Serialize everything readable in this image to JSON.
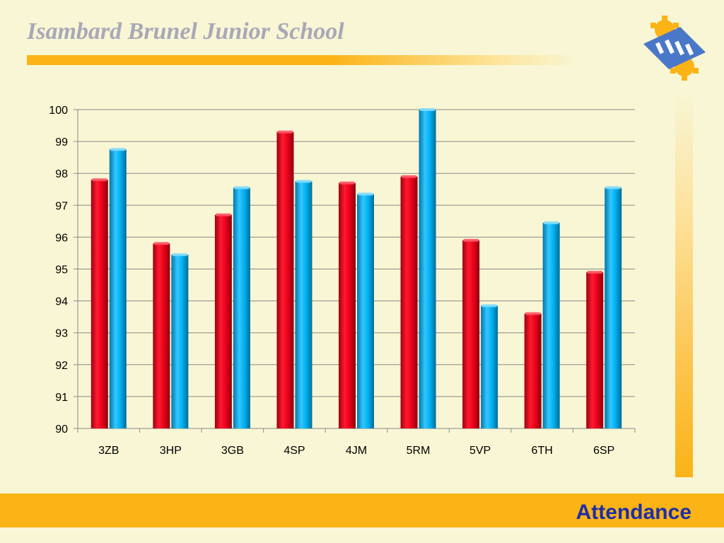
{
  "header": {
    "school_name": "Isambard Brunel Junior School"
  },
  "logo": {
    "icon": "gear-puzzle-logo",
    "colors": [
      "#4a78c8",
      "#fbb316"
    ]
  },
  "footer": {
    "slide_title": "Attendance"
  },
  "colors": {
    "series_red": "#e8001a",
    "series_blue": "#00b0f0",
    "accent": "#fbb316",
    "title_text": "#1d2ea8"
  },
  "chart_data": {
    "type": "bar",
    "title": "",
    "xlabel": "",
    "ylabel": "",
    "categories": [
      "3ZB",
      "3HP",
      "3GB",
      "4SP",
      "4JM",
      "5RM",
      "5VP",
      "6TH",
      "6SP"
    ],
    "series": [
      {
        "values": [
          97.8,
          95.8,
          96.7,
          99.3,
          97.7,
          97.9,
          95.9,
          93.6,
          94.9
        ],
        "color": "#e8001a"
      },
      {
        "values": [
          98.75,
          95.45,
          97.55,
          97.75,
          97.35,
          100,
          93.85,
          96.45,
          97.55
        ],
        "color": "#00b0f0"
      }
    ],
    "ylim": [
      90,
      100
    ],
    "yticks": [
      90,
      91,
      92,
      93,
      94,
      95,
      96,
      97,
      98,
      99,
      100
    ],
    "grid": true,
    "legend": "none"
  }
}
